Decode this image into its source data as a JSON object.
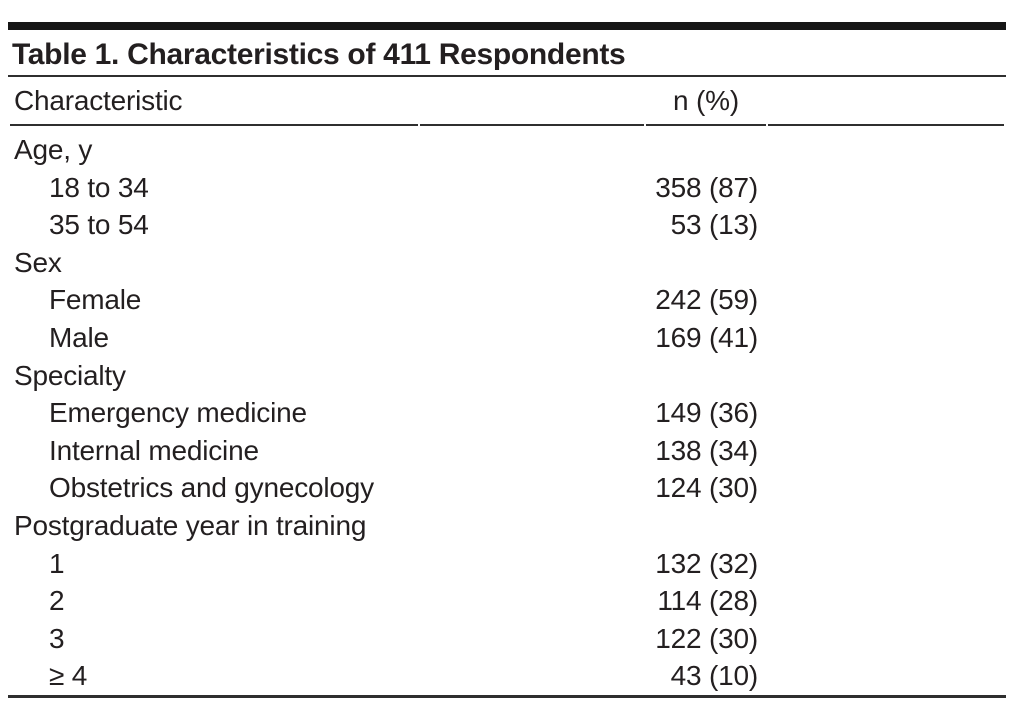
{
  "table": {
    "title": "Table 1. Characteristics of 411 Respondents",
    "columns": {
      "characteristic": "Characteristic",
      "value": "n (%)"
    },
    "rows": [
      {
        "label": "Age, y",
        "value": "",
        "indent": false
      },
      {
        "label": "18 to 34",
        "value": "358 (87)",
        "indent": true
      },
      {
        "label": "35 to 54",
        "value": "53 (13)",
        "indent": true
      },
      {
        "label": "Sex",
        "value": "",
        "indent": false
      },
      {
        "label": "Female",
        "value": "242 (59)",
        "indent": true
      },
      {
        "label": "Male",
        "value": "169 (41)",
        "indent": true
      },
      {
        "label": "Specialty",
        "value": "",
        "indent": false
      },
      {
        "label": "Emergency medicine",
        "value": "149 (36)",
        "indent": true
      },
      {
        "label": "Internal medicine",
        "value": "138 (34)",
        "indent": true
      },
      {
        "label": "Obstetrics and gynecology",
        "value": "124 (30)",
        "indent": true
      },
      {
        "label": "Postgraduate year in training",
        "value": "",
        "indent": false
      },
      {
        "label": "1",
        "value": "132 (32)",
        "indent": true
      },
      {
        "label": "2",
        "value": "114 (28)",
        "indent": true
      },
      {
        "label": "3",
        "value": "122 (30)",
        "indent": true
      },
      {
        "label": "≥ 4",
        "value": "43 (10)",
        "indent": true
      }
    ]
  },
  "colors": {
    "background": "#ffffff",
    "text": "#231f20",
    "rule": "#2f2f2f",
    "bar": "#161616"
  }
}
